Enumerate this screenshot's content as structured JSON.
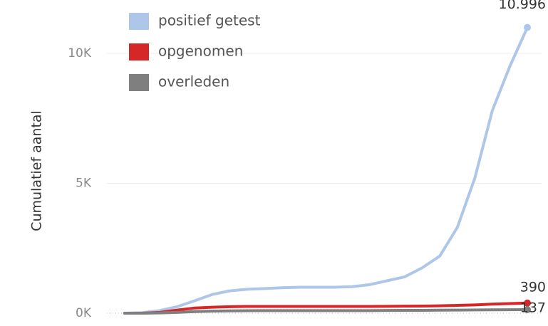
{
  "chart_data": {
    "type": "line",
    "ylabel": "Cumulatief aantal",
    "categories": [
      null,
      null,
      null,
      null,
      null,
      null,
      null,
      null,
      null,
      null,
      null,
      null,
      null,
      null,
      null,
      null,
      null,
      null,
      null,
      null,
      null,
      null,
      null,
      null
    ],
    "series": [
      {
        "name": "positief getest",
        "color": "#aec7e8",
        "values": [
          0,
          20,
          100,
          250,
          480,
          720,
          860,
          920,
          950,
          980,
          1000,
          1000,
          1000,
          1020,
          1100,
          1250,
          1400,
          1750,
          2200,
          3300,
          5200,
          7800,
          9500,
          10996
        ],
        "value_labels": [
          null,
          null,
          null,
          null,
          null,
          null,
          null,
          null,
          null,
          null,
          null,
          null,
          null,
          null,
          null,
          null,
          null,
          null,
          null,
          null,
          null,
          null,
          null,
          "10.996"
        ]
      },
      {
        "name": "opgenomen",
        "color": "#d62728",
        "values": [
          0,
          0,
          30,
          120,
          200,
          230,
          250,
          260,
          260,
          260,
          260,
          260,
          260,
          260,
          260,
          265,
          270,
          275,
          285,
          300,
          320,
          350,
          370,
          390
        ],
        "value_labels": [
          null,
          null,
          null,
          null,
          null,
          null,
          null,
          null,
          null,
          null,
          null,
          null,
          null,
          null,
          null,
          null,
          null,
          null,
          null,
          null,
          null,
          null,
          null,
          "390"
        ]
      },
      {
        "name": "overleden",
        "color": "#7f7f7f",
        "values": [
          0,
          0,
          10,
          30,
          60,
          80,
          90,
          95,
          100,
          100,
          100,
          100,
          100,
          100,
          100,
          105,
          108,
          110,
          115,
          120,
          125,
          130,
          134,
          137
        ],
        "value_labels": [
          null,
          null,
          null,
          null,
          null,
          null,
          null,
          null,
          null,
          null,
          null,
          null,
          null,
          null,
          null,
          null,
          null,
          null,
          null,
          null,
          null,
          null,
          null,
          "137"
        ]
      }
    ],
    "ylim": [
      0,
      12000
    ],
    "yticks": [
      {
        "value": 0,
        "label": "0K"
      },
      {
        "value": 5000,
        "label": "5K"
      },
      {
        "value": 10000,
        "label": "10K"
      }
    ],
    "grid": true,
    "legend": "top-left"
  }
}
